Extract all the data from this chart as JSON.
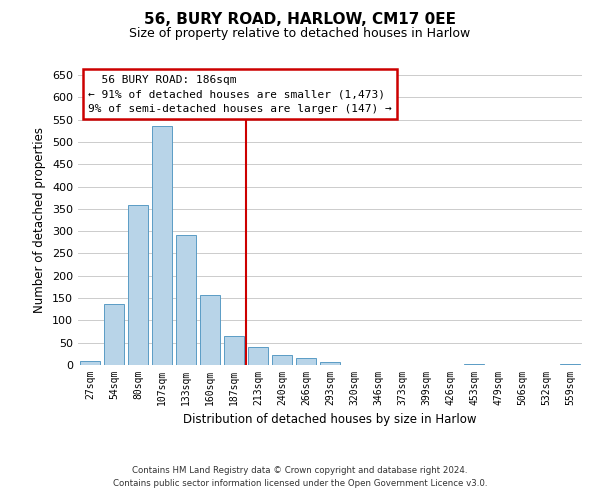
{
  "title": "56, BURY ROAD, HARLOW, CM17 0EE",
  "subtitle": "Size of property relative to detached houses in Harlow",
  "xlabel": "Distribution of detached houses by size in Harlow",
  "ylabel": "Number of detached properties",
  "bar_labels": [
    "27sqm",
    "54sqm",
    "80sqm",
    "107sqm",
    "133sqm",
    "160sqm",
    "187sqm",
    "213sqm",
    "240sqm",
    "266sqm",
    "293sqm",
    "320sqm",
    "346sqm",
    "373sqm",
    "399sqm",
    "426sqm",
    "453sqm",
    "479sqm",
    "506sqm",
    "532sqm",
    "559sqm"
  ],
  "bar_values": [
    10,
    137,
    358,
    535,
    291,
    158,
    65,
    40,
    22,
    15,
    7,
    0,
    0,
    0,
    0,
    0,
    3,
    0,
    0,
    0,
    3
  ],
  "bar_color": "#b8d4e8",
  "bar_edge_color": "#5a9cc5",
  "vline_x": 6.5,
  "vline_color": "#cc0000",
  "ylim": [
    0,
    650
  ],
  "yticks": [
    0,
    50,
    100,
    150,
    200,
    250,
    300,
    350,
    400,
    450,
    500,
    550,
    600,
    650
  ],
  "annotation_title": "56 BURY ROAD: 186sqm",
  "annotation_line1": "← 91% of detached houses are smaller (1,473)",
  "annotation_line2": "9% of semi-detached houses are larger (147) →",
  "annotation_box_color": "#ffffff",
  "annotation_box_edge": "#cc0000",
  "footer_line1": "Contains HM Land Registry data © Crown copyright and database right 2024.",
  "footer_line2": "Contains public sector information licensed under the Open Government Licence v3.0.",
  "background_color": "#ffffff",
  "grid_color": "#cccccc"
}
